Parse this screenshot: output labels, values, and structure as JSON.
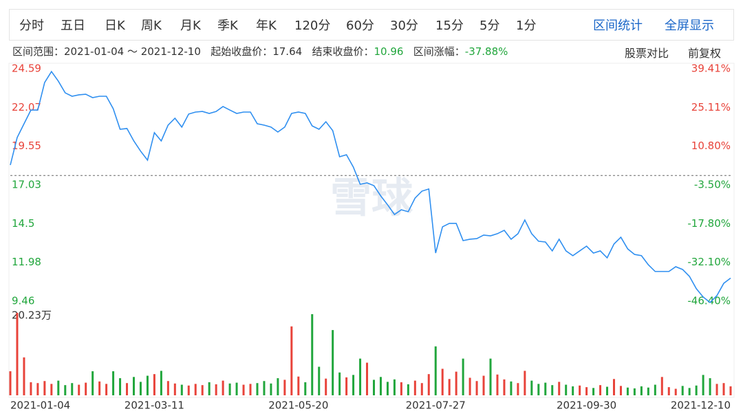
{
  "toolbar": {
    "periods": [
      "分时",
      "五日",
      "日K",
      "周K",
      "月K",
      "季K",
      "年K",
      "120分",
      "60分",
      "30分",
      "15分",
      "5分",
      "1分"
    ],
    "actions": [
      "区间统计",
      "全屏显示"
    ]
  },
  "info": {
    "range": "区间范围：2021-01-04 ～ 2021-12-10",
    "start_label": "起始收盘价：",
    "start_price": 17.64,
    "end_label": "结束收盘价：",
    "end_price": 10.96,
    "change_label": "区间涨幅：",
    "change": "-37.88%",
    "links": [
      "股票对比",
      "前复权"
    ]
  },
  "watermark": "雪球",
  "chart_data": [
    {
      "type": "line",
      "color": "#2f8ff0",
      "up_color": "#e8433a",
      "down_color": "#21a63c",
      "categories": [
        "2021-01-04",
        null,
        null,
        null,
        null,
        null,
        null,
        null,
        null,
        null,
        null,
        null,
        null,
        null,
        null,
        null,
        null,
        null,
        null,
        null,
        null,
        "2021-03-11",
        null,
        null,
        null,
        null,
        null,
        null,
        null,
        null,
        null,
        null,
        null,
        null,
        null,
        null,
        null,
        null,
        null,
        null,
        null,
        null,
        "2021-05-20",
        null,
        null,
        null,
        null,
        null,
        null,
        null,
        null,
        null,
        null,
        null,
        null,
        null,
        null,
        null,
        null,
        null,
        null,
        null,
        "2021-07-27",
        null,
        null,
        null,
        null,
        null,
        null,
        null,
        null,
        null,
        null,
        null,
        null,
        null,
        null,
        null,
        null,
        null,
        null,
        null,
        null,
        null,
        "2021-09-30",
        null,
        null,
        null,
        null,
        null,
        null,
        null,
        null,
        null,
        null,
        null,
        null,
        null,
        null,
        null,
        null,
        null,
        null,
        null,
        null,
        "2021-12-10"
      ],
      "values": [
        18.32,
        20.11,
        21.01,
        21.9,
        21.9,
        23.69,
        24.41,
        23.78,
        23.02,
        22.8,
        22.89,
        22.93,
        22.71,
        22.8,
        22.8,
        21.99,
        20.65,
        20.7,
        19.89,
        19.22,
        18.64,
        20.43,
        19.89,
        20.92,
        21.37,
        20.79,
        21.64,
        21.77,
        21.81,
        21.68,
        21.81,
        22.13,
        21.9,
        21.68,
        21.77,
        21.77,
        21.01,
        20.92,
        20.79,
        20.47,
        20.79,
        21.68,
        21.77,
        21.68,
        20.87,
        20.65,
        21.14,
        20.56,
        18.86,
        18.99,
        18.19,
        17.07,
        17.16,
        16.98,
        16.31,
        15.73,
        15.1,
        15.41,
        15.28,
        16.17,
        16.62,
        16.76,
        12.59,
        14.3,
        14.52,
        14.52,
        13.4,
        13.49,
        13.53,
        13.76,
        13.71,
        13.85,
        14.07,
        13.49,
        13.85,
        14.74,
        13.85,
        13.36,
        13.31,
        12.73,
        13.49,
        12.73,
        12.42,
        12.73,
        13.04,
        12.59,
        12.73,
        12.28,
        13.18,
        13.62,
        12.86,
        12.5,
        12.42,
        11.83,
        11.39,
        11.39,
        11.39,
        11.7,
        11.52,
        11.07,
        10.27,
        9.73,
        9.37,
        9.82,
        10.62,
        10.96
      ],
      "ylim": [
        9.46,
        24.59
      ],
      "yticks": [
        24.59,
        22.07,
        19.55,
        17.03,
        14.5,
        11.98,
        9.46
      ],
      "y2lim": [
        -46.4,
        39.41
      ],
      "y2ticks": [
        {
          "value": 39.41,
          "label": "39.41%"
        },
        {
          "value": 25.11,
          "label": "25.11%"
        },
        {
          "value": 10.8,
          "label": "10.80%"
        },
        {
          "value": -3.5,
          "label": "-3.50%"
        },
        {
          "value": -17.8,
          "label": "-17.80%"
        },
        {
          "value": -32.1,
          "label": "-32.10%"
        },
        {
          "value": -46.4,
          "label": "-46.40%"
        }
      ]
    },
    {
      "type": "bar",
      "values": [
        5.9,
        20.23,
        9.3,
        3.2,
        3.0,
        3.5,
        2.8,
        3.6,
        2.5,
        3.0,
        2.6,
        3.1,
        5.9,
        3.4,
        2.8,
        5.9,
        4.2,
        3.0,
        4.5,
        3.3,
        4.8,
        5.2,
        6.0,
        3.5,
        2.9,
        2.6,
        2.4,
        2.8,
        2.5,
        3.2,
        2.7,
        3.6,
        2.9,
        3.1,
        2.6,
        2.8,
        3.0,
        3.5,
        2.9,
        4.2,
        3.8,
        16.9,
        4.6,
        3.2,
        19.9,
        7.0,
        4.1,
        16.0,
        5.6,
        4.4,
        5.0,
        9.0,
        8.0,
        3.8,
        4.5,
        3.3,
        3.9,
        3.2,
        2.7,
        3.6,
        3.0,
        5.2,
        12.0,
        6.5,
        4.0,
        5.8,
        9.0,
        4.3,
        3.5,
        4.8,
        9.0,
        5.1,
        3.9,
        3.4,
        3.0,
        6.0,
        3.6,
        2.8,
        3.1,
        2.5,
        3.3,
        2.6,
        2.2,
        2.4,
        2.0,
        1.8,
        2.5,
        2.1,
        4.0,
        2.3,
        1.9,
        1.7,
        2.2,
        1.9,
        2.6,
        4.5,
        2.0,
        1.6,
        2.3,
        1.8,
        2.4,
        5.0,
        4.2,
        2.8,
        3.0,
        2.2
      ],
      "ylim": [
        0,
        20.23
      ],
      "yticks": [
        {
          "value": 20.23,
          "label": "20.23万"
        }
      ]
    }
  ]
}
